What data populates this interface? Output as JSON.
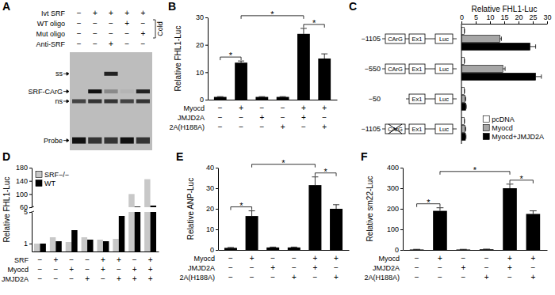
{
  "chart_data": [
    {
      "type": "gel",
      "panel": "A",
      "rows": [
        {
          "label": "Ivt SRF",
          "signs": [
            "−",
            "+",
            "+",
            "+",
            "+"
          ]
        },
        {
          "label": "WT oligo",
          "signs": [
            "−",
            "−",
            "−",
            "+",
            "−"
          ]
        },
        {
          "label": "Mut oligo",
          "signs": [
            "−",
            "−",
            "−",
            "−",
            "+"
          ]
        },
        {
          "label": "Anti-SRF",
          "signs": [
            "−",
            "−",
            "+",
            "−",
            "−"
          ]
        }
      ],
      "bracket": {
        "label": "Cold",
        "rows": [
          1,
          2
        ]
      },
      "bands": [
        {
          "label": "ss",
          "lanes": [
            0,
            0,
            0.9,
            0,
            0
          ]
        },
        {
          "label": "SRF-CArG",
          "lanes": [
            0,
            1,
            0.3,
            0.05,
            0.9
          ]
        },
        {
          "label": "ns",
          "lanes": [
            0.7,
            0.8,
            0.8,
            0.7,
            0.8
          ]
        },
        {
          "label": "Probe",
          "lanes": [
            1,
            0.8,
            0.8,
            1,
            0.8
          ]
        }
      ]
    },
    {
      "type": "bar",
      "panel": "B",
      "y_label": "Relative FHL1-Luc",
      "categories": [
        null,
        null,
        null,
        null,
        null,
        null
      ],
      "values": [
        1,
        13.5,
        1,
        1,
        24,
        15
      ],
      "errors": [
        0.1,
        0.6,
        0.1,
        0.1,
        2,
        1.7
      ],
      "color": "#000000",
      "ylim": [
        0,
        30
      ],
      "yticks": [
        0,
        10,
        20,
        30
      ],
      "table": [
        {
          "label": "Myocd",
          "signs": [
            "−",
            "+",
            "−",
            "−",
            "+",
            "+"
          ]
        },
        {
          "label": "JMJD2A",
          "signs": [
            "−",
            "−",
            "+",
            "−",
            "+",
            "−"
          ]
        },
        {
          "label": "2A(H188A)",
          "signs": [
            "−",
            "−",
            "−",
            "+",
            "−",
            "+"
          ]
        }
      ],
      "annotations": [
        {
          "from": 0,
          "to": 1,
          "label": "*"
        },
        {
          "from": 1,
          "to": 4,
          "label": "*"
        },
        {
          "from": 4,
          "to": 5,
          "label": "*"
        }
      ]
    },
    {
      "type": "bar",
      "panel": "C",
      "orientation": "horizontal",
      "x_label": "Relative FHL1-Luc",
      "categories": [
        "−1105",
        "−550",
        "−50",
        "−1105"
      ],
      "constructs": [
        [
          "CArG",
          "Ex1",
          "Luc"
        ],
        [
          "CArG",
          "Ex1",
          "Luc"
        ],
        [
          "Ex1",
          "Luc"
        ],
        [
          "CArG",
          "Ex1",
          "Luc"
        ]
      ],
      "mutated": [
        false,
        false,
        false,
        true
      ],
      "series": [
        {
          "name": "pcDNA",
          "color": "#ffffff",
          "values": [
            1,
            1,
            1,
            1
          ],
          "errors": [
            0.1,
            0.1,
            0.1,
            0.1
          ]
        },
        {
          "name": "Myocd",
          "color": "#a6a6a6",
          "values": [
            13.5,
            14.5,
            1.3,
            1.3
          ],
          "errors": [
            0.5,
            0.8,
            0.2,
            0.2
          ]
        },
        {
          "name": "Myocd+JMJD2A",
          "color": "#000000",
          "values": [
            24,
            26,
            1.5,
            1.4
          ],
          "errors": [
            2,
            2,
            0.2,
            0.2
          ]
        }
      ],
      "xlim": [
        0,
        30
      ],
      "xticks": [
        0,
        5,
        10,
        15,
        20,
        25,
        30
      ],
      "legend": "lower right"
    },
    {
      "type": "bar",
      "panel": "D",
      "y_label": "Relative FHL1-Luc",
      "categories": [
        null,
        null,
        null,
        null,
        null,
        null,
        null,
        null
      ],
      "series": [
        {
          "name": "SRF−/−",
          "color": "#c8c8c8",
          "values": [
            1,
            1.8,
            1.2,
            1.8,
            1.5,
            1.6,
            100,
            145
          ]
        },
        {
          "name": "WT",
          "color": "#000000",
          "values": [
            1,
            1.3,
            2.7,
            1.5,
            1.3,
            4.5,
            62,
            65
          ]
        }
      ],
      "ylim": [
        0,
        180
      ],
      "yticks": [
        1,
        5,
        60,
        100,
        140,
        180
      ],
      "axis_break": [
        5,
        60
      ],
      "legend": "upper left",
      "table": [
        {
          "label": "SRF",
          "signs": [
            "−",
            "+",
            "−",
            "−",
            "+",
            "+",
            "−",
            "+"
          ]
        },
        {
          "label": "Myocd",
          "signs": [
            "−",
            "−",
            "+",
            "−",
            "+",
            "−",
            "+",
            "+"
          ]
        },
        {
          "label": "JMJD2A",
          "signs": [
            "−",
            "−",
            "−",
            "+",
            "−",
            "+",
            "+",
            "+"
          ]
        }
      ]
    },
    {
      "type": "bar",
      "panel": "E",
      "y_label": "Relative ANP-Luc",
      "categories": [
        null,
        null,
        null,
        null,
        null,
        null
      ],
      "values": [
        1,
        16.5,
        1.2,
        1.2,
        31.5,
        20
      ],
      "errors": [
        0.2,
        2.5,
        0.2,
        0.2,
        4,
        2
      ],
      "color": "#000000",
      "ylim": [
        0,
        40
      ],
      "yticks": [
        0,
        10,
        20,
        30,
        40
      ],
      "table": [
        {
          "label": "Myocd",
          "signs": [
            "−",
            "+",
            "−",
            "−",
            "+",
            "+"
          ]
        },
        {
          "label": "JMJD2A",
          "signs": [
            "−",
            "−",
            "+",
            "−",
            "+",
            "−"
          ]
        },
        {
          "label": "2A(H188A)",
          "signs": [
            "−",
            "−",
            "−",
            "+",
            "−",
            "+"
          ]
        }
      ],
      "annotations": [
        {
          "from": 0,
          "to": 1,
          "label": "*"
        },
        {
          "from": 1,
          "to": 4,
          "label": "*"
        },
        {
          "from": 4,
          "to": 5,
          "label": "*"
        }
      ]
    },
    {
      "type": "bar",
      "panel": "F",
      "y_label": "Relative sm22-Luc",
      "categories": [
        null,
        null,
        null,
        null,
        null,
        null
      ],
      "values": [
        2,
        190,
        2,
        3,
        300,
        175
      ],
      "errors": [
        1,
        15,
        1,
        1,
        20,
        15
      ],
      "color": "#000000",
      "ylim": [
        0,
        400
      ],
      "yticks": [
        0,
        100,
        200,
        300,
        400
      ],
      "table": [
        {
          "label": "Myocd",
          "signs": [
            "−",
            "+",
            "−",
            "−",
            "+",
            "+"
          ]
        },
        {
          "label": "JMJD2A",
          "signs": [
            "−",
            "−",
            "+",
            "−",
            "+",
            "−"
          ]
        },
        {
          "label": "2A(H188A)",
          "signs": [
            "−",
            "−",
            "−",
            "+",
            "−",
            "+"
          ]
        }
      ],
      "annotations": [
        {
          "from": 0,
          "to": 1,
          "label": "*"
        },
        {
          "from": 1,
          "to": 4,
          "label": "*"
        },
        {
          "from": 4,
          "to": 5,
          "label": "*"
        }
      ]
    }
  ]
}
